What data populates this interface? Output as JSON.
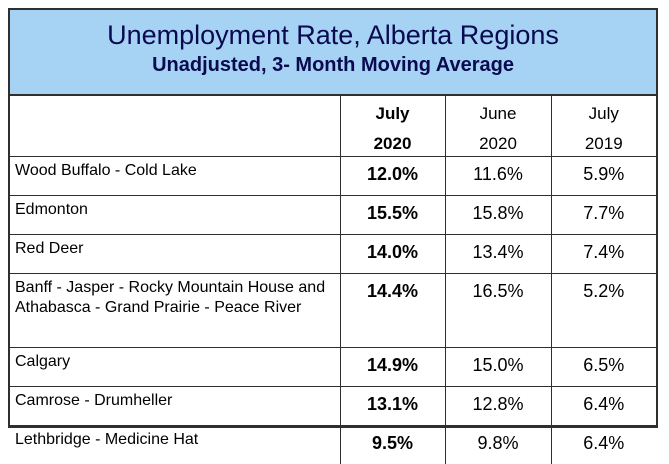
{
  "chart_data": {
    "type": "table",
    "title": "Unemployment Rate, Alberta Regions",
    "subtitle": "Unadjusted, 3- Month Moving Average",
    "columns": [
      {
        "line1": "July",
        "line2": "2020"
      },
      {
        "line1": "June",
        "line2": "2020"
      },
      {
        "line1": "July",
        "line2": "2019"
      }
    ],
    "rows": [
      {
        "region": "Wood Buffalo - Cold Lake",
        "values": [
          "12.0%",
          "11.6%",
          "5.9%"
        ]
      },
      {
        "region": "Edmonton",
        "values": [
          "15.5%",
          "15.8%",
          "7.7%"
        ]
      },
      {
        "region": "Red Deer",
        "values": [
          "14.0%",
          "13.4%",
          "7.4%"
        ]
      },
      {
        "region": "Banff - Jasper - Rocky Mountain House and Athabasca - Grand Prairie - Peace River",
        "values": [
          "14.4%",
          "16.5%",
          "5.2%"
        ]
      },
      {
        "region": "Calgary",
        "values": [
          "14.9%",
          "15.0%",
          "6.5%"
        ]
      },
      {
        "region": "Camrose - Drumheller",
        "values": [
          "13.1%",
          "12.8%",
          "6.4%"
        ]
      },
      {
        "region": "Lethbridge - Medicine Hat",
        "values": [
          "9.5%",
          "9.8%",
          "6.4%"
        ]
      }
    ],
    "colors": {
      "header_bg": "#a6d3f4",
      "title_text": "#0a0a50"
    }
  }
}
